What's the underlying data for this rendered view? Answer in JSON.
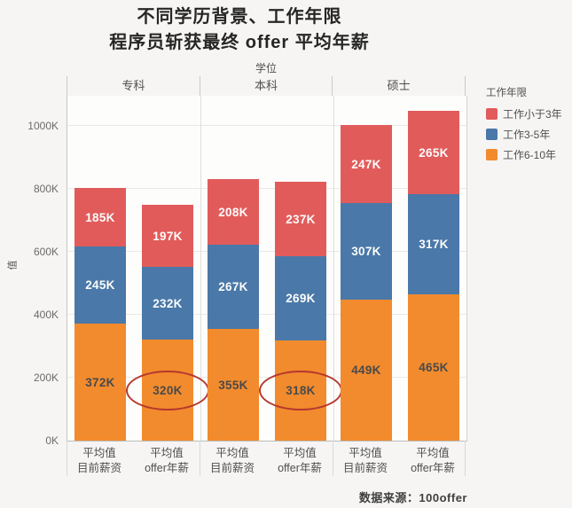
{
  "title": {
    "line1": "不同学历背景、工作年限",
    "line2": "程序员斩获最终 offer 平均年薪"
  },
  "chart_data": {
    "type": "bar",
    "stacked": true,
    "stack_order": "bottom-to-top",
    "facet_title": "学位",
    "facets": [
      "专科",
      "本科",
      "硕士"
    ],
    "bars_per_facet": 2,
    "x_tick_lines": [
      [
        "平均值",
        "目前薪资"
      ],
      [
        "平均值",
        "offer年薪"
      ]
    ],
    "series": [
      {
        "name": "工作6-10年",
        "color": "#f28b2d",
        "label_color": "#4a4a4a",
        "values_k": [
          372,
          320,
          355,
          318,
          449,
          465
        ]
      },
      {
        "name": "工作3-5年",
        "color": "#4a78a8",
        "label_color": "#fcfcfc",
        "values_k": [
          245,
          232,
          267,
          269,
          307,
          317
        ]
      },
      {
        "name": "工作小于3年",
        "color": "#e25b5b",
        "label_color": "#fcfcfc",
        "values_k": [
          185,
          197,
          208,
          237,
          247,
          265
        ]
      }
    ],
    "totals_k": [
      802,
      749,
      830,
      824,
      1003,
      1047
    ],
    "value_suffix": "K",
    "ylabel": "值",
    "yticks": [
      "0K",
      "200K",
      "400K",
      "600K",
      "800K",
      "1000K"
    ],
    "ytick_values_k": [
      0,
      200,
      400,
      600,
      800,
      1000
    ],
    "ylim_k": [
      0,
      1096
    ],
    "grid": true,
    "legend_position": "right",
    "circled_bar_indexes": [
      1,
      3
    ],
    "circle_color": "#b5382f"
  },
  "legend": {
    "title": "工作年限",
    "items": [
      {
        "label": "工作小于3年",
        "color": "#e25b5b"
      },
      {
        "label": "工作3-5年",
        "color": "#4a78a8"
      },
      {
        "label": "工作6-10年",
        "color": "#f28b2d"
      }
    ]
  },
  "source_note": "数据来源：100offer"
}
